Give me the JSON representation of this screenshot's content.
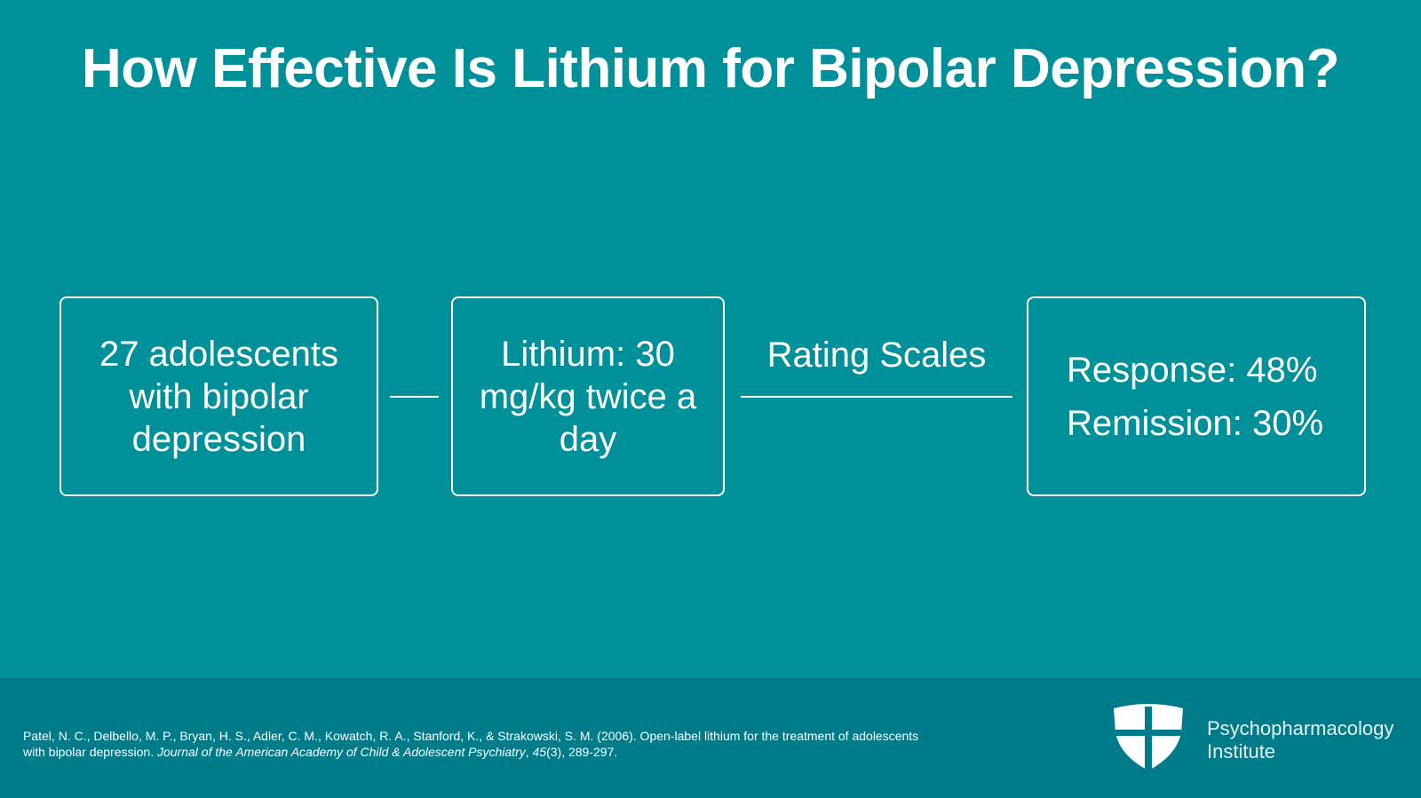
{
  "title": "How Effective Is Lithium for Bipolar Depression?",
  "nodes": [
    {
      "label": "27 adolescents with bipolar depression"
    },
    {
      "label": "Lithium: 30 mg/kg twice a day"
    },
    {
      "outcomes": [
        "Response: 48%",
        "Remission: 30%"
      ]
    }
  ],
  "edges": [
    {
      "from": 0,
      "to": 1
    },
    {
      "from": 1,
      "to": 2,
      "label": "Rating Scales"
    }
  ],
  "footer": {
    "citation": [
      {
        "text": "Patel, N. C., Delbello, M. P., Bryan, H. S., Adler, C. M., Kowatch, R. A., Stanford, K., & Strakowski, S. M. (2006). Open-label lithium for the treatment of adolescents with bipolar depression. ",
        "italic": false
      },
      {
        "text": "Journal of the American Academy of Child & Adolescent Psychiatry",
        "italic": true
      },
      {
        "text": ", ",
        "italic": false
      },
      {
        "text": "45",
        "italic": true
      },
      {
        "text": "(3), 289-297.",
        "italic": false
      }
    ],
    "logo": [
      "Psychopharmacology",
      "Institute"
    ]
  }
}
